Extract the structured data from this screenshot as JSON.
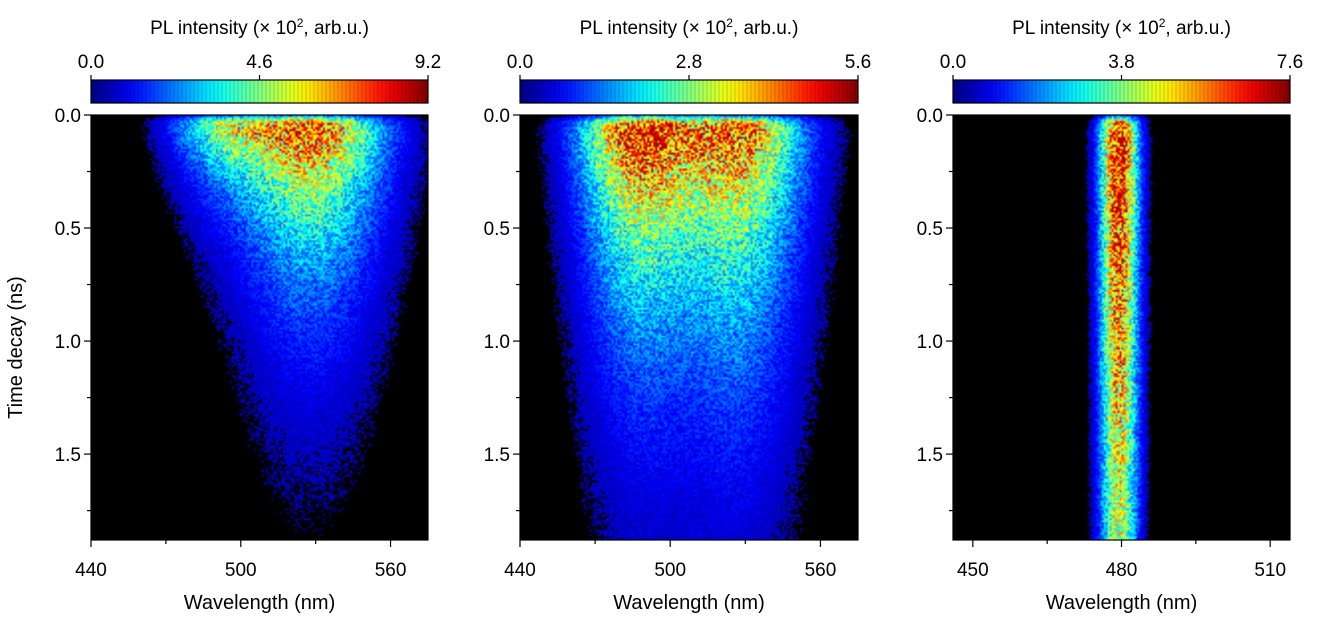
{
  "chart_data": [
    {
      "type": "heatmap",
      "colorbar_label_prefix": "PL intensity (× 10",
      "colorbar_label_sup": "2",
      "colorbar_label_suffix": ", arb.u.)",
      "colorbar_ticks": [
        "0.0",
        "4.6",
        "9.2"
      ],
      "colorbar_range": [
        0,
        9.2
      ],
      "xlabel": "Wavelength (nm)",
      "xlim": [
        440,
        575
      ],
      "xticks": [
        440,
        500,
        560
      ],
      "xtick_labels": [
        "440",
        "500",
        "560"
      ],
      "ylabel": "Time decay (ns)",
      "ylim": [
        0,
        1.88
      ],
      "yticks": [
        0,
        0.5,
        1.0,
        1.5
      ],
      "ytick_labels": [
        "0.0",
        "0.5",
        "1.0",
        "1.5"
      ],
      "emission_peaks": [
        {
          "wavelength": 492,
          "width": 14,
          "amplitude": 0.6,
          "decay_ns": 0.22
        },
        {
          "wavelength": 528,
          "width": 20,
          "amplitude": 1.0,
          "decay_ns": 0.55
        }
      ],
      "colors": {
        "background": "#000000"
      }
    },
    {
      "type": "heatmap",
      "colorbar_label_prefix": "PL intensity (× 10",
      "colorbar_label_sup": "2",
      "colorbar_label_suffix": ", arb.u.)",
      "colorbar_ticks": [
        "0.0",
        "2.8",
        "5.6"
      ],
      "colorbar_range": [
        0,
        5.6
      ],
      "xlabel": "Wavelength (nm)",
      "xlim": [
        440,
        575
      ],
      "xticks": [
        440,
        500,
        560
      ],
      "xtick_labels": [
        "440",
        "500",
        "560"
      ],
      "ylabel": "",
      "ylim": [
        0,
        1.88
      ],
      "yticks": [
        0,
        0.5,
        1.0,
        1.5
      ],
      "ytick_labels": [
        "0.0",
        "0.5",
        "1.0",
        "1.5"
      ],
      "emission_peaks": [
        {
          "wavelength": 487,
          "width": 16,
          "amplitude": 1.0,
          "decay_ns": 0.7
        },
        {
          "wavelength": 527,
          "width": 18,
          "amplitude": 0.9,
          "decay_ns": 0.8
        }
      ],
      "colors": {
        "background": "#000000"
      }
    },
    {
      "type": "heatmap",
      "colorbar_label_prefix": "PL intensity (× 10",
      "colorbar_label_sup": "2",
      "colorbar_label_suffix": ", arb.u.)",
      "colorbar_ticks": [
        "0.0",
        "3.8",
        "7.6"
      ],
      "colorbar_range": [
        0,
        7.6
      ],
      "xlabel": "Wavelength (nm)",
      "xlim": [
        446,
        514
      ],
      "xticks": [
        450,
        480,
        510
      ],
      "xtick_labels": [
        "450",
        "480",
        "510"
      ],
      "ylabel": "",
      "ylim": [
        0,
        1.88
      ],
      "yticks": [
        0,
        0.5,
        1.0,
        1.5
      ],
      "ytick_labels": [
        "0.0",
        "0.5",
        "1.0",
        "1.5"
      ],
      "emission_peaks": [
        {
          "wavelength": 479.5,
          "width": 2.6,
          "amplitude": 1.0,
          "decay_ns": 3.5
        }
      ],
      "colors": {
        "background": "#000000"
      }
    }
  ]
}
